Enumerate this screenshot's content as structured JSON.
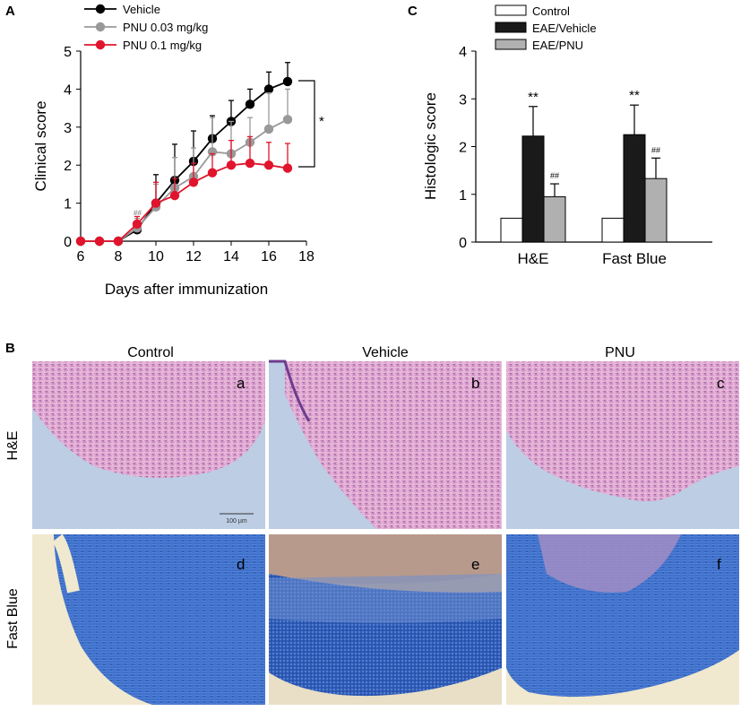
{
  "panel_letters": {
    "a": "A",
    "b": "B",
    "c": "C"
  },
  "chart_data": [
    {
      "panel": "A",
      "type": "line",
      "xlabel": "Days after immunization",
      "ylabel": "Clinical score",
      "xlim": [
        6,
        18
      ],
      "ylim": [
        0,
        5
      ],
      "xticks": [
        "6",
        "8",
        "10",
        "12",
        "14",
        "16",
        "18"
      ],
      "yticks": [
        "0",
        "1",
        "2",
        "3",
        "4",
        "5"
      ],
      "legend_position": "top-left",
      "x": [
        6,
        7,
        8,
        9,
        10,
        11,
        12,
        13,
        14,
        15,
        16,
        17
      ],
      "series": [
        {
          "name": "Vehicle",
          "color": "#000000",
          "values": [
            0,
            0,
            0,
            0.3,
            1.0,
            1.6,
            2.1,
            2.7,
            3.15,
            3.6,
            4.0,
            4.2
          ],
          "errors": [
            0,
            0,
            0,
            0.2,
            0.75,
            0.95,
            0.8,
            0.6,
            0.55,
            0.4,
            0.45,
            0.5
          ]
        },
        {
          "name": "PNU 0.03 mg/kg",
          "color": "#999999",
          "values": [
            0,
            0,
            0,
            0.35,
            0.9,
            1.4,
            1.7,
            2.35,
            2.3,
            2.6,
            2.95,
            3.2
          ],
          "errors": [
            0,
            0,
            0,
            0.25,
            0.6,
            0.8,
            0.75,
            0.9,
            0.85,
            0.65,
            0.95,
            0.8
          ]
        },
        {
          "name": "PNU 0.1 mg/kg",
          "color": "#e0142c",
          "values": [
            0,
            0,
            0,
            0.45,
            1.0,
            1.2,
            1.55,
            1.8,
            2.0,
            2.05,
            2.0,
            1.92
          ],
          "errors": [
            0,
            0,
            0,
            0.2,
            0.55,
            0.45,
            0.5,
            0.5,
            0.65,
            0.7,
            0.6,
            0.65
          ]
        }
      ],
      "annotations": [
        {
          "text": "##",
          "x": 9,
          "y": 0.7
        },
        {
          "text": "*",
          "bracket_from": 4.2,
          "bracket_to": 1.92
        }
      ]
    },
    {
      "panel": "C",
      "type": "bar",
      "ylabel": "Histologic score",
      "ylim": [
        0,
        4
      ],
      "yticks": [
        "0",
        "1",
        "2",
        "3",
        "4"
      ],
      "categories": [
        "H&E",
        "Fast Blue"
      ],
      "legend_position": "top",
      "series": [
        {
          "name": "Control",
          "color": "#ffffff",
          "values": [
            0.5,
            0.5
          ],
          "errors": [
            0,
            0
          ],
          "marks": [
            "",
            ""
          ]
        },
        {
          "name": "EAE/Vehicle",
          "color": "#1a1a1a",
          "values": [
            2.22,
            2.25
          ],
          "errors": [
            0.62,
            0.62
          ],
          "marks": [
            "**",
            "**"
          ]
        },
        {
          "name": "EAE/PNU",
          "color": "#b0b0b0",
          "values": [
            0.95,
            1.33
          ],
          "errors": [
            0.27,
            0.43
          ],
          "marks": [
            "##",
            "##"
          ]
        }
      ]
    }
  ],
  "panel_b": {
    "col_headers": [
      "Control",
      "Vehicle",
      "PNU"
    ],
    "row_labels": [
      "H&E",
      "Fast Blue"
    ],
    "tile_letters": [
      [
        "a",
        "b",
        "c"
      ],
      [
        "d",
        "e",
        "f"
      ]
    ],
    "scale_bar_label": "100 µm"
  }
}
